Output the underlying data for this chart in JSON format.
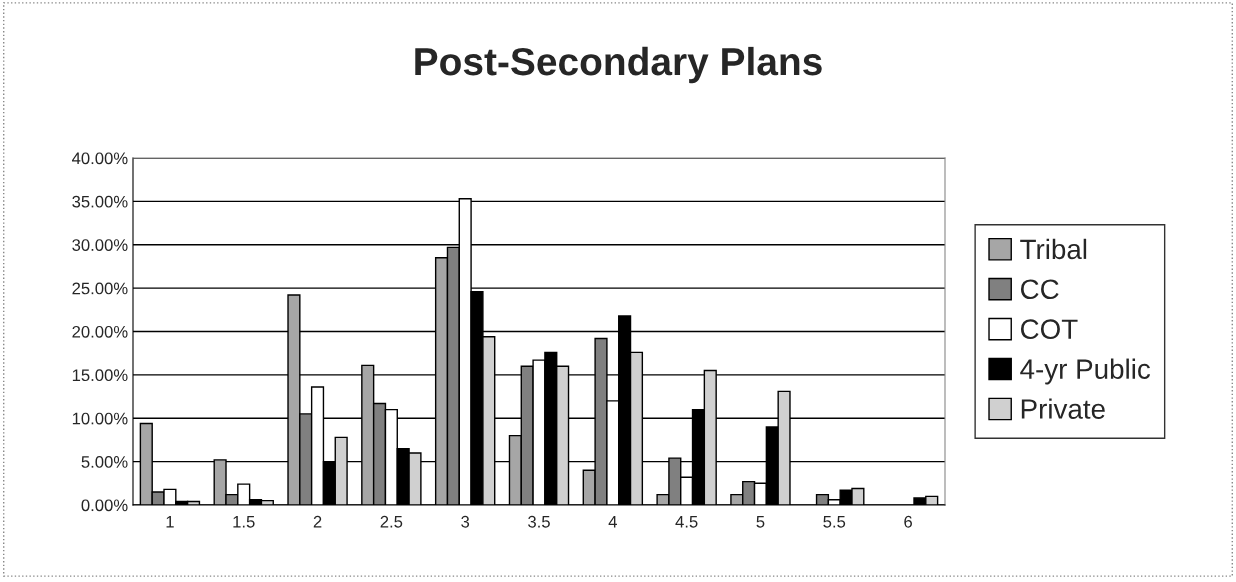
{
  "chart_data": {
    "type": "bar",
    "title": "Post-Secondary Plans",
    "categories": [
      "1",
      "1.5",
      "2",
      "2.5",
      "3",
      "3.5",
      "4",
      "4.5",
      "5",
      "5.5",
      "6"
    ],
    "series": [
      {
        "name": "Tribal",
        "color": "#a6a6a6",
        "values": [
          9.4,
          5.2,
          24.2,
          16.1,
          28.5,
          8.0,
          4.0,
          1.2,
          1.2,
          0,
          0
        ]
      },
      {
        "name": "CC",
        "color": "#808080",
        "values": [
          1.5,
          1.2,
          10.5,
          11.7,
          29.7,
          16.0,
          19.2,
          5.4,
          2.7,
          1.2,
          0
        ]
      },
      {
        "name": "COT",
        "color": "#ffffff",
        "values": [
          1.8,
          2.4,
          13.6,
          11.0,
          35.3,
          16.7,
          12.0,
          3.2,
          2.5,
          0.6,
          0
        ]
      },
      {
        "name": "4-yr Public",
        "color": "#000000",
        "values": [
          0.4,
          0.6,
          5.0,
          6.5,
          24.6,
          17.6,
          21.8,
          11.0,
          9.0,
          1.7,
          0.8
        ]
      },
      {
        "name": "Private",
        "color": "#d0d0d0",
        "values": [
          0.4,
          0.5,
          7.8,
          6.0,
          19.4,
          16.0,
          17.6,
          15.5,
          13.1,
          1.9,
          1.0
        ]
      }
    ],
    "ylim": [
      0,
      40
    ],
    "yticks": [
      {
        "value": 0,
        "label": "0.00%"
      },
      {
        "value": 5,
        "label": "5.00%"
      },
      {
        "value": 10,
        "label": "10.00%"
      },
      {
        "value": 15,
        "label": "15.00%"
      },
      {
        "value": 20,
        "label": "20.00%"
      },
      {
        "value": 25,
        "label": "25.00%"
      },
      {
        "value": 30,
        "label": "30.00%"
      },
      {
        "value": 35,
        "label": "35.00%"
      },
      {
        "value": 40,
        "label": "40.00%"
      }
    ],
    "grid": "y",
    "legend": "right"
  }
}
